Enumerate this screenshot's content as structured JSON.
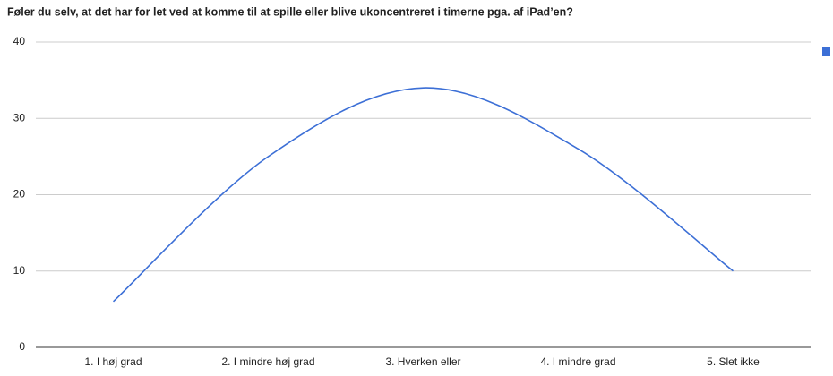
{
  "chart_data": {
    "type": "line",
    "title": "Føler du selv, at det har for let ved at komme til at spille eller blive ukoncentreret i timerne pga. af iPad’en?",
    "categories": [
      "1. I høj grad",
      "2. I mindre høj grad",
      "3. Hverken eller",
      "4. I mindre grad",
      "5. Slet ikke"
    ],
    "series": [
      {
        "color": "#3c6fd6",
        "values": [
          6,
          25,
          34,
          26,
          10
        ]
      }
    ],
    "ylim": [
      0,
      40
    ],
    "yticks": [
      0,
      10,
      20,
      30,
      40
    ],
    "grid": true,
    "smooth": true
  }
}
